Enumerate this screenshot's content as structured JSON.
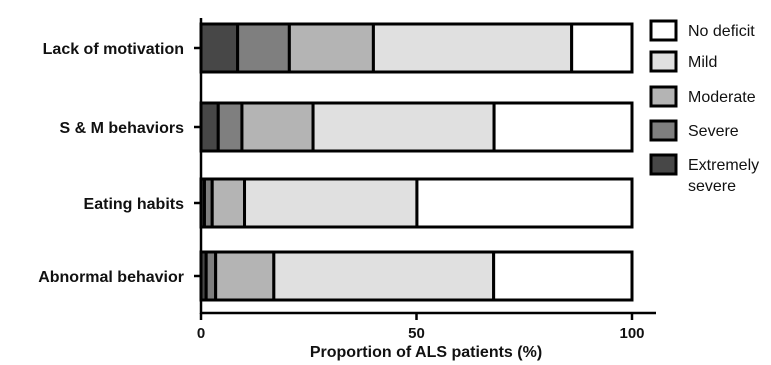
{
  "chart_data": {
    "type": "bar",
    "orientation": "horizontal",
    "stacked": true,
    "title": "",
    "xlabel": "Proportion of ALS patients (%)",
    "ylabel": "",
    "xlim": [
      0,
      105
    ],
    "xticks": [
      0,
      50,
      100
    ],
    "grid": false,
    "legend_position": "right",
    "categories": [
      "Lack of motivation",
      "S & M behaviors",
      "Eating habits",
      "Abnormal behavior"
    ],
    "series": [
      {
        "name": "Extremely severe",
        "color": "#474747",
        "values": [
          8.5,
          4,
          0.8,
          1.2
        ]
      },
      {
        "name": "Severe",
        "color": "#7f7f7f",
        "values": [
          12,
          5.5,
          1.8,
          2.2
        ]
      },
      {
        "name": "Moderate",
        "color": "#b4b4b4",
        "values": [
          19.5,
          16.5,
          7.5,
          13.5
        ]
      },
      {
        "name": "Mild",
        "color": "#e0e0e0",
        "values": [
          46,
          42,
          40,
          51
        ]
      },
      {
        "name": "No deficit",
        "color": "#ffffff",
        "values": [
          14,
          32,
          49.9,
          32.1
        ]
      }
    ],
    "legend_order": [
      "No deficit",
      "Mild",
      "Moderate",
      "Severe",
      "Extremely severe"
    ]
  }
}
